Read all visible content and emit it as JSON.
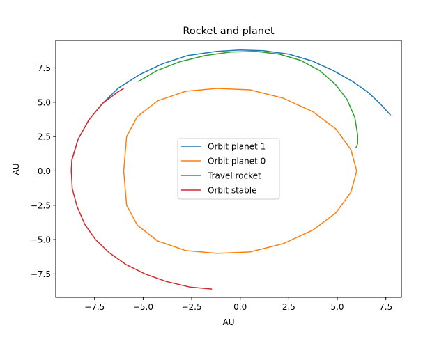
{
  "chart_data": {
    "type": "line",
    "title": "Rocket and planet",
    "xlabel": "AU",
    "ylabel": "AU",
    "xlim": [
      -9.5,
      8.3
    ],
    "ylim": [
      -9.2,
      9.5
    ],
    "xticks": [
      -7.5,
      -5.0,
      -2.5,
      0.0,
      2.5,
      5.0,
      7.5
    ],
    "yticks": [
      -7.5,
      -5.0,
      -2.5,
      0.0,
      2.5,
      5.0,
      7.5
    ],
    "xtick_labels": [
      "−7.5",
      "−5.0",
      "−2.5",
      "0.0",
      "2.5",
      "5.0",
      "7.5"
    ],
    "ytick_labels": [
      "−7.5",
      "−5.0",
      "−2.5",
      "0.0",
      "2.5",
      "5.0",
      "7.5"
    ],
    "grid": false,
    "legend_position": "center",
    "series": [
      {
        "name": "Orbit planet 1",
        "color": "#1f77b4",
        "x": [
          -8.7,
          -8.67,
          -8.35,
          -7.8,
          -7.1,
          -6.3,
          -5.2,
          -4.0,
          -2.7,
          -1.2,
          0.0,
          1.2,
          2.5,
          3.7,
          4.8,
          5.8,
          6.6,
          7.2,
          7.75
        ],
        "y": [
          0.0,
          0.8,
          2.3,
          3.7,
          4.9,
          6.0,
          7.0,
          7.8,
          8.4,
          8.7,
          8.8,
          8.75,
          8.5,
          8.0,
          7.3,
          6.5,
          5.7,
          4.9,
          4.05
        ]
      },
      {
        "name": "Orbit planet 0",
        "color": "#ff7f0e",
        "x": [
          6.0,
          5.7,
          4.93,
          3.75,
          2.2,
          0.5,
          -1.2,
          -2.8,
          -4.25,
          -5.3,
          -5.85,
          -6.0,
          -5.85,
          -5.3,
          -4.25,
          -2.8,
          -1.2,
          0.5,
          2.2,
          3.75,
          4.93,
          5.7,
          6.0
        ],
        "y": [
          0.0,
          1.55,
          3.05,
          4.3,
          5.3,
          5.9,
          6.0,
          5.8,
          5.1,
          3.95,
          2.5,
          0.0,
          -2.5,
          -3.95,
          -5.1,
          -5.8,
          -6.0,
          -5.9,
          -5.3,
          -4.3,
          -3.05,
          -1.55,
          0.0
        ]
      },
      {
        "name": "Travel rocket",
        "color": "#2ca02c",
        "x": [
          -5.25,
          -4.3,
          -3.1,
          -1.8,
          -0.5,
          0.8,
          2.0,
          3.1,
          4.1,
          4.9,
          5.5,
          5.9,
          6.05,
          6.05,
          5.95
        ],
        "y": [
          6.5,
          7.3,
          7.95,
          8.4,
          8.65,
          8.7,
          8.5,
          8.05,
          7.3,
          6.3,
          5.2,
          3.9,
          2.6,
          2.0,
          1.65
        ]
      },
      {
        "name": "Orbit stable",
        "color": "#d62728",
        "x": [
          -6.0,
          -6.3,
          -7.1,
          -7.8,
          -8.35,
          -8.67,
          -8.7,
          -8.65,
          -8.4,
          -8.0,
          -7.45,
          -6.75,
          -5.9,
          -4.9,
          -3.8,
          -2.6,
          -1.45
        ],
        "y": [
          6.0,
          5.75,
          4.9,
          3.7,
          2.3,
          0.8,
          0.0,
          -1.3,
          -2.6,
          -3.9,
          -5.0,
          -5.95,
          -6.8,
          -7.5,
          -8.05,
          -8.45,
          -8.6
        ]
      }
    ]
  }
}
